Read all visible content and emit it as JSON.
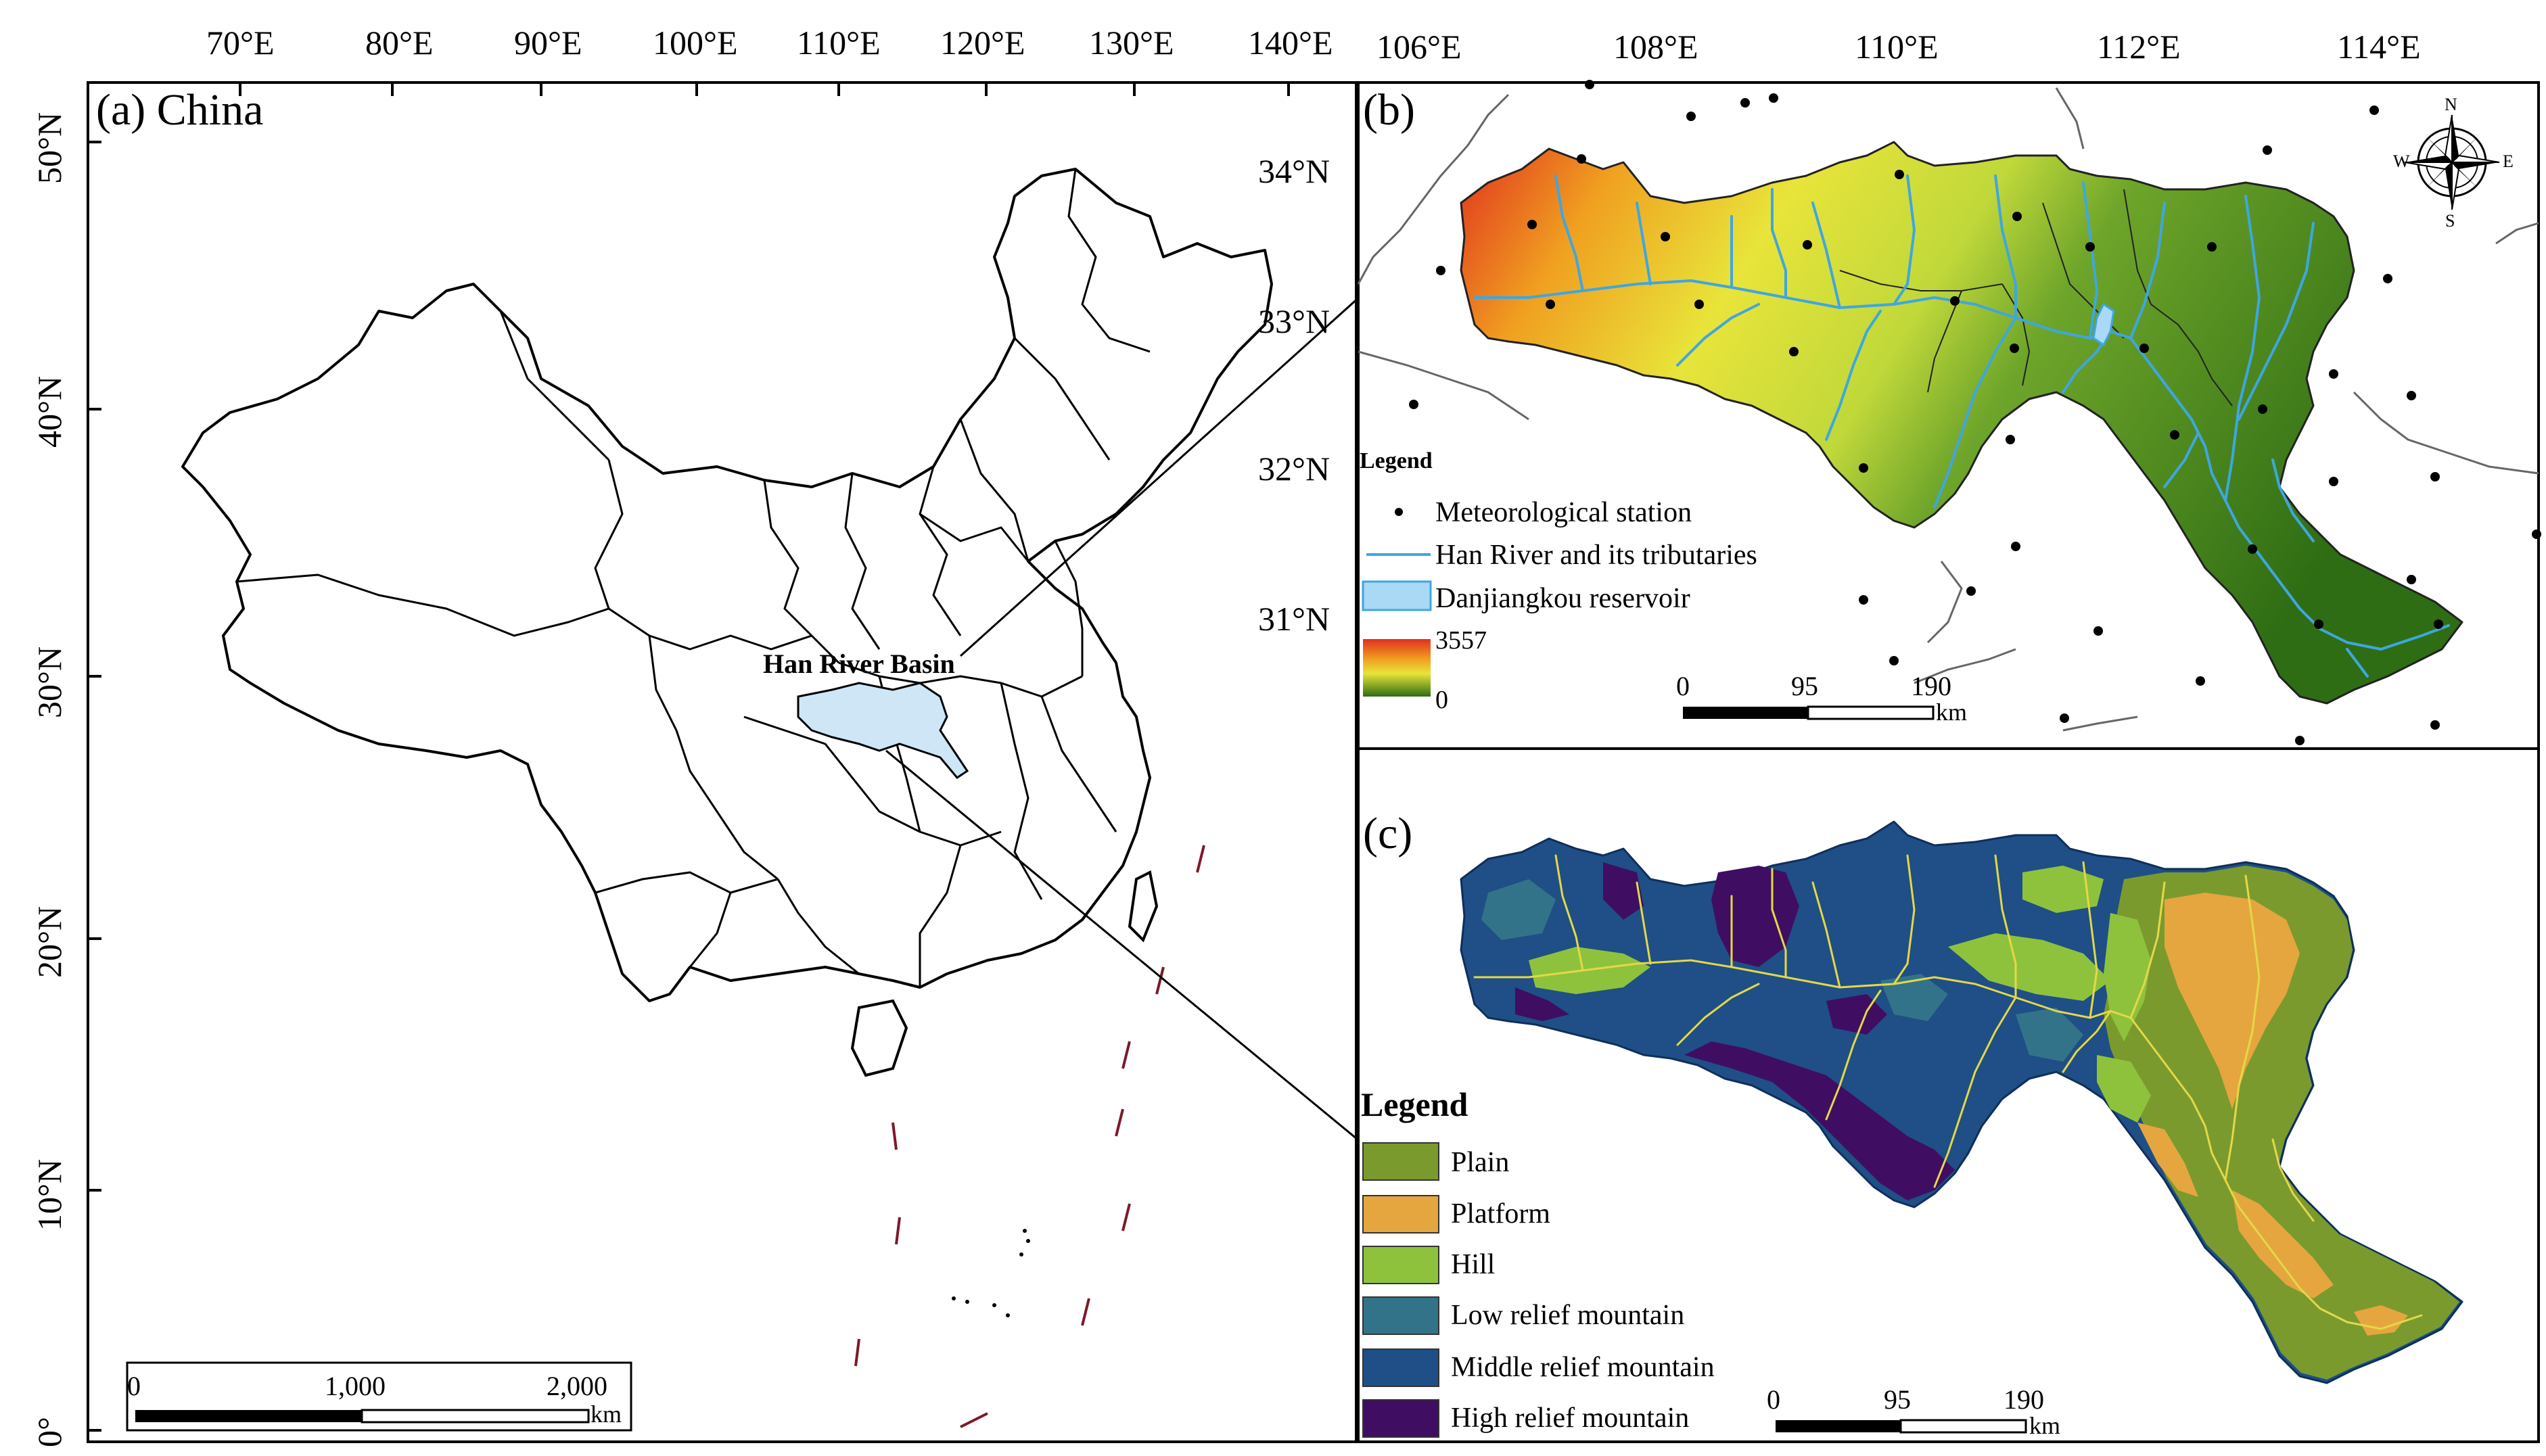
{
  "panel_a": {
    "label": "(a) China",
    "lon_ticks": [
      "70°E",
      "80°E",
      "90°E",
      "100°E",
      "110°E",
      "120°E",
      "130°E",
      "140°E"
    ],
    "lat_ticks": [
      "50°N",
      "40°N",
      "30°N",
      "20°N",
      "10°N",
      "0°"
    ],
    "basin_label": "Han River Basin",
    "basin_color": "#cfe6f7",
    "scalebar": {
      "labels": [
        "0",
        "1,000",
        "2,000"
      ],
      "unit": "km"
    }
  },
  "panel_b": {
    "label": "(b)",
    "lon_ticks": [
      "106°E",
      "108°E",
      "110°E",
      "112°E",
      "114°E"
    ],
    "lat_ticks": [
      "34°N",
      "33°N",
      "32°N",
      "31°N"
    ],
    "legend": {
      "title": "Legend",
      "station_label": "Meteorological station",
      "river_label": "Han River and its tributaries",
      "reservoir_label": "Danjiangkou reservoir",
      "elev_max": "3557",
      "elev_min": "0"
    },
    "colors": {
      "river": "#3fa6e0",
      "reservoir": "#a9d9f5",
      "elev_high": "#e0301e",
      "elev_mid": "#e8e43a",
      "elev_low": "#3a7d1a"
    },
    "scalebar": {
      "labels": [
        "0",
        "95",
        "190"
      ],
      "unit": "km"
    },
    "compass": {
      "n": "N",
      "s": "S",
      "e": "E",
      "w": "W"
    }
  },
  "panel_c": {
    "label": "(c)",
    "legend": {
      "title": "Legend",
      "classes": [
        {
          "name": "Plain",
          "color": "#7a9a2e"
        },
        {
          "name": "Platform",
          "color": "#e5a63f"
        },
        {
          "name": "Hill",
          "color": "#8fc23c"
        },
        {
          "name": "Low relief mountain",
          "color": "#33738a"
        },
        {
          "name": "Middle relief mountain",
          "color": "#1f4f86"
        },
        {
          "name": "High relief mountain",
          "color": "#3f0e63"
        }
      ]
    },
    "scalebar": {
      "labels": [
        "0",
        "95",
        "190"
      ],
      "unit": "km"
    }
  }
}
